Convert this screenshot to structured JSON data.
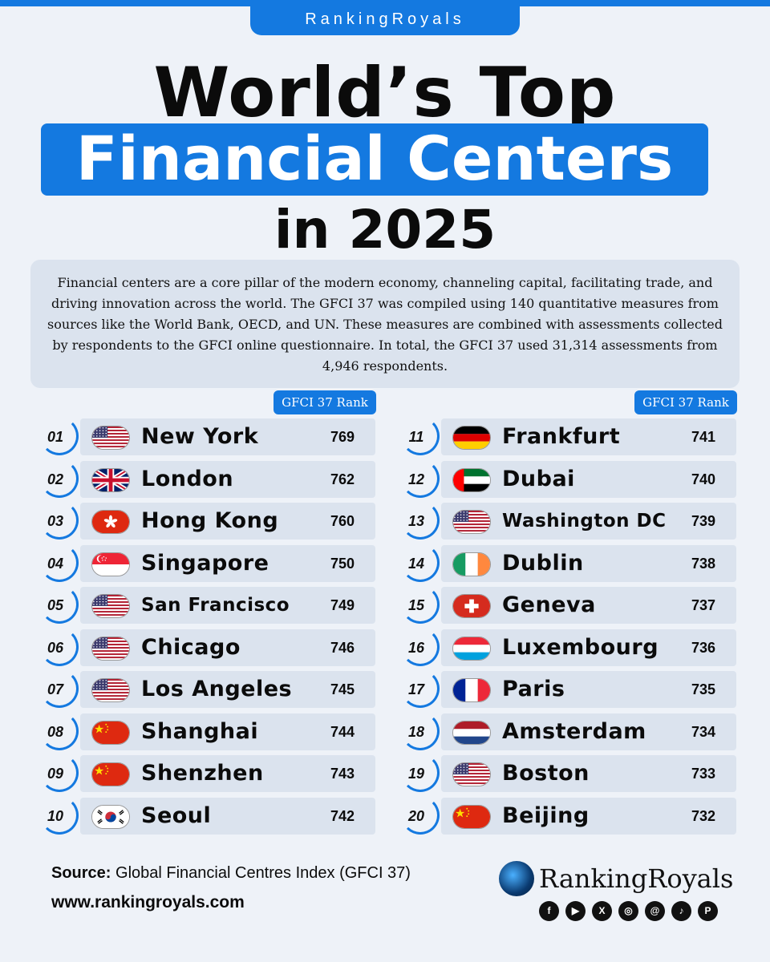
{
  "brand": "RankingRoyals",
  "title_line1": "World’s Top",
  "title_line2": "Financial Centers",
  "title_line3": "in 2025",
  "intro": "Financial centers are a core pillar of the modern economy, channeling capital, facilitating trade, and driving innovation across the world. The GFCI 37 was compiled using 140 quantitative measures from sources like the World Bank, OECD, and UN. These measures are combined with assessments collected by respondents to the GFCI online questionnaire. In total, the GFCI 37 used 31,314 assessments from 4,946 respondents.",
  "badge_label": "GFCI 37 Rank",
  "left_list": [
    {
      "rank": "01",
      "city": "New York",
      "score": "769",
      "flag": "us"
    },
    {
      "rank": "02",
      "city": "London",
      "score": "762",
      "flag": "uk"
    },
    {
      "rank": "03",
      "city": "Hong Kong",
      "score": "760",
      "flag": "hk"
    },
    {
      "rank": "04",
      "city": "Singapore",
      "score": "750",
      "flag": "sg"
    },
    {
      "rank": "05",
      "city": "San Francisco",
      "score": "749",
      "flag": "us"
    },
    {
      "rank": "06",
      "city": "Chicago",
      "score": "746",
      "flag": "us"
    },
    {
      "rank": "07",
      "city": "Los Angeles",
      "score": "745",
      "flag": "us"
    },
    {
      "rank": "08",
      "city": "Shanghai",
      "score": "744",
      "flag": "cn"
    },
    {
      "rank": "09",
      "city": "Shenzhen",
      "score": "743",
      "flag": "cn"
    },
    {
      "rank": "10",
      "city": "Seoul",
      "score": "742",
      "flag": "kr"
    }
  ],
  "right_list": [
    {
      "rank": "11",
      "city": "Frankfurt",
      "score": "741",
      "flag": "de"
    },
    {
      "rank": "12",
      "city": "Dubai",
      "score": "740",
      "flag": "ae"
    },
    {
      "rank": "13",
      "city": "Washington DC",
      "score": "739",
      "flag": "us"
    },
    {
      "rank": "14",
      "city": "Dublin",
      "score": "738",
      "flag": "ie"
    },
    {
      "rank": "15",
      "city": "Geneva",
      "score": "737",
      "flag": "ch"
    },
    {
      "rank": "16",
      "city": "Luxembourg",
      "score": "736",
      "flag": "lu"
    },
    {
      "rank": "17",
      "city": "Paris",
      "score": "735",
      "flag": "fr"
    },
    {
      "rank": "18",
      "city": "Amsterdam",
      "score": "734",
      "flag": "nl"
    },
    {
      "rank": "19",
      "city": "Boston",
      "score": "733",
      "flag": "us"
    },
    {
      "rank": "20",
      "city": "Beijing",
      "score": "732",
      "flag": "cn"
    }
  ],
  "source_label": "Source:",
  "source_text": "Global Financial Centres Index (GFCI 37)",
  "website": "www.rankingroyals.com",
  "footer_brand": "RankingRoyals",
  "socials": [
    "facebook-icon",
    "youtube-icon",
    "x-icon",
    "instagram-icon",
    "threads-icon",
    "tiktok-icon",
    "pinterest-icon"
  ],
  "accent_color": "#1479e0"
}
